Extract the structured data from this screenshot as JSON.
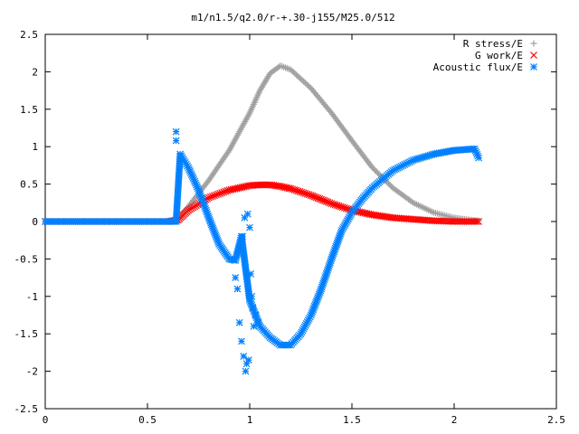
{
  "chart_data": {
    "type": "scatter",
    "title": "m1/n1.5/q2.0/r-+.30-j155/M25.0/512",
    "xlabel": "",
    "ylabel": "",
    "xlim": [
      0,
      2.5
    ],
    "ylim": [
      -2.5,
      2.5
    ],
    "x_ticks": [
      "0",
      "0.5",
      "1",
      "1.5",
      "2",
      "2.5"
    ],
    "y_ticks": [
      "2.5",
      "2",
      "1.5",
      "1",
      "0.5",
      "0",
      "-0.5",
      "-1",
      "-1.5",
      "-2",
      "-2.5"
    ],
    "grid": false,
    "legend_position": "top-right",
    "series": [
      {
        "name": "R stress/E",
        "marker": "+",
        "color": "#a0a0a0",
        "x": [
          0,
          0.2,
          0.4,
          0.6,
          0.65,
          0.7,
          0.8,
          0.9,
          1.0,
          1.05,
          1.1,
          1.15,
          1.2,
          1.3,
          1.4,
          1.5,
          1.6,
          1.7,
          1.8,
          1.9,
          2.0,
          2.05,
          2.12
        ],
        "y": [
          0,
          0,
          0,
          0,
          0.03,
          0.2,
          0.55,
          0.95,
          1.45,
          1.75,
          1.98,
          2.08,
          2.03,
          1.78,
          1.45,
          1.08,
          0.72,
          0.45,
          0.25,
          0.12,
          0.05,
          0.03,
          0.01
        ]
      },
      {
        "name": "G work/E",
        "marker": "x",
        "color": "#ff0000",
        "x": [
          0,
          0.2,
          0.4,
          0.6,
          0.65,
          0.7,
          0.8,
          0.9,
          1.0,
          1.05,
          1.1,
          1.15,
          1.2,
          1.3,
          1.4,
          1.5,
          1.6,
          1.7,
          1.8,
          1.9,
          2.0,
          2.12
        ],
        "y": [
          0,
          0,
          0,
          0,
          0.02,
          0.15,
          0.32,
          0.42,
          0.48,
          0.49,
          0.49,
          0.47,
          0.44,
          0.35,
          0.24,
          0.15,
          0.09,
          0.05,
          0.03,
          0.01,
          0.0,
          0.0
        ]
      },
      {
        "name": "Acoustic flux/E",
        "marker": "*",
        "color": "#0080ff",
        "x": [
          0,
          0.2,
          0.4,
          0.6,
          0.64,
          0.66,
          0.7,
          0.75,
          0.8,
          0.85,
          0.9,
          0.93,
          0.96,
          1.0,
          1.05,
          1.1,
          1.15,
          1.2,
          1.25,
          1.3,
          1.35,
          1.4,
          1.45,
          1.5,
          1.55,
          1.6,
          1.7,
          1.8,
          1.9,
          2.0,
          2.05,
          2.1,
          2.12
        ],
        "y": [
          0,
          0,
          0,
          0,
          0,
          0.9,
          0.72,
          0.42,
          0.05,
          -0.3,
          -0.5,
          -0.52,
          -0.2,
          -1.05,
          -1.4,
          -1.55,
          -1.65,
          -1.65,
          -1.5,
          -1.25,
          -0.9,
          -0.5,
          -0.12,
          0.12,
          0.3,
          0.45,
          0.68,
          0.82,
          0.9,
          0.95,
          0.96,
          0.97,
          0.85
        ]
      },
      {
        "name": "",
        "marker": "*",
        "color": "#0080ff",
        "x": [
          0.64,
          0.64,
          0.93,
          0.94,
          0.95,
          0.955,
          0.96,
          0.965,
          0.97,
          0.975,
          0.98,
          0.985,
          0.99,
          0.995,
          1.0,
          1.005,
          1.01,
          1.015,
          1.02,
          1.03,
          1.04
        ],
        "y": [
          1.2,
          1.08,
          -0.75,
          -0.9,
          -1.35,
          -0.35,
          -1.6,
          -0.2,
          -1.8,
          0.05,
          -2.0,
          -1.9,
          0.1,
          -1.85,
          -0.08,
          -0.7,
          -1.0,
          -1.15,
          -1.4,
          -1.25,
          -1.35
        ]
      }
    ]
  }
}
